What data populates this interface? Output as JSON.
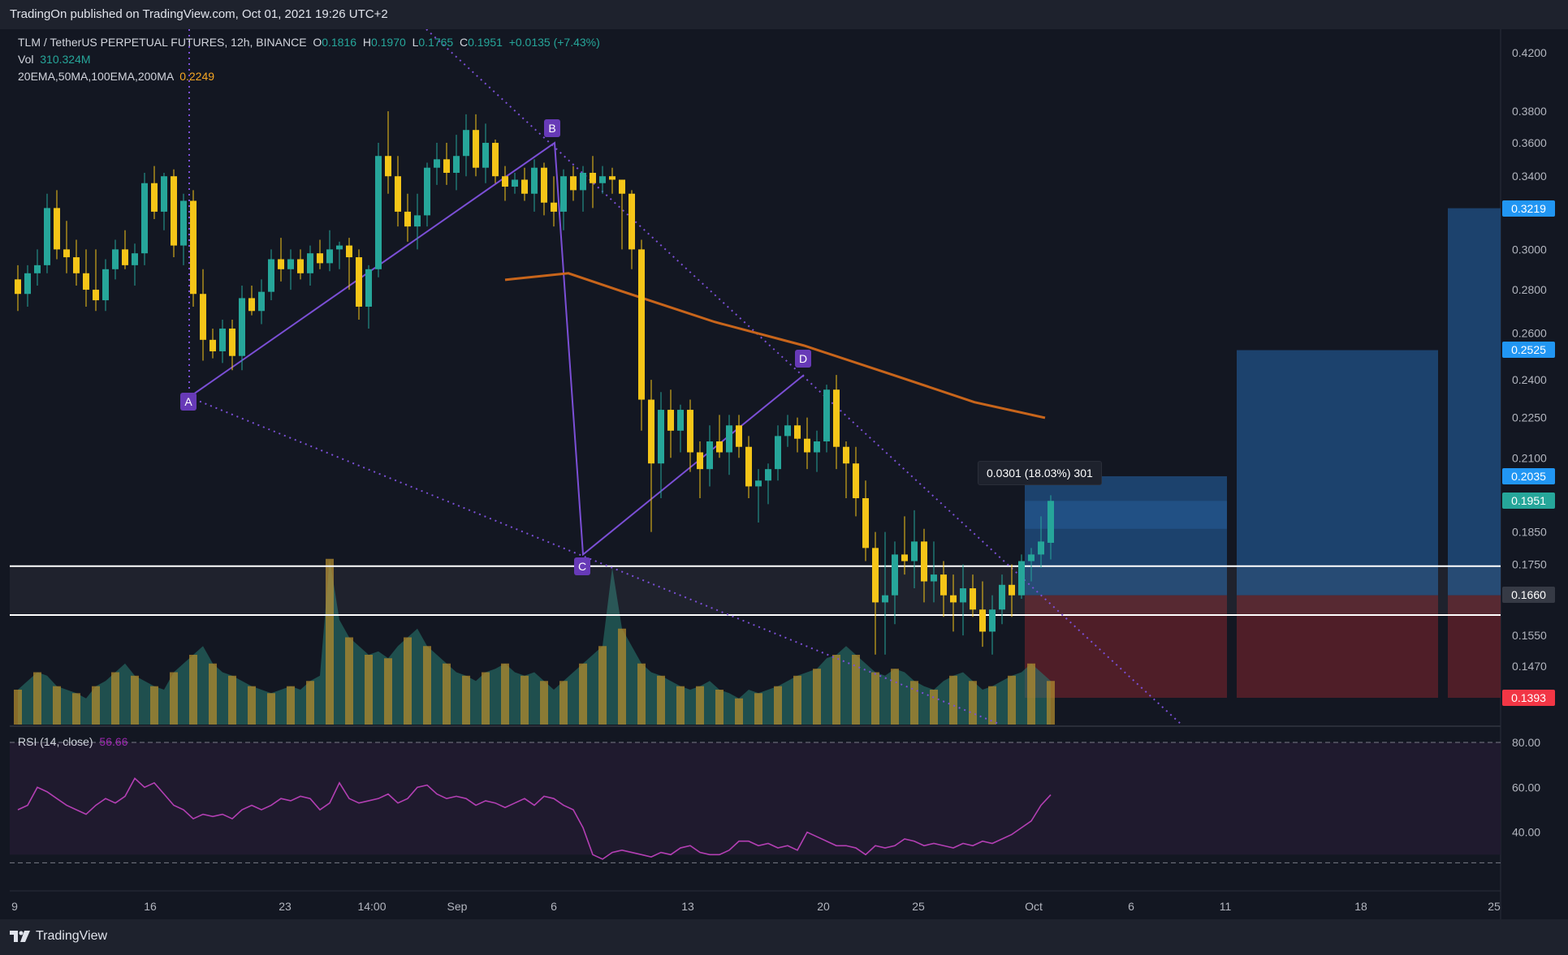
{
  "header": {
    "publish_line": "TradingOn published on TradingView.com, Oct 01, 2021 19:26 UTC+2"
  },
  "legend": {
    "symbol_line": "TLM / TetherUS PERPETUAL FUTURES, 12h, BINANCE",
    "o_label": "O",
    "o_value": "0.1816",
    "h_label": "H",
    "h_value": "0.1970",
    "l_label": "L",
    "l_value": "0.1765",
    "c_label": "C",
    "c_value": "0.1951",
    "change": "+0.0135 (+7.43%)",
    "vol_label": "Vol",
    "vol_value": "310.324M",
    "ma_label": "20EMA,50MA,100EMA,200MA",
    "ma_value": "0.2249",
    "rsi_label": "RSI (14, close)",
    "rsi_value": "56.66"
  },
  "price_labels": {
    "p1": "0.3219",
    "p2": "0.2525",
    "p3": "0.2035",
    "p4": "0.1951",
    "p5": "0.1660",
    "p6": "0.1393"
  },
  "measure": {
    "text": "0.0301 (18.03%) 301"
  },
  "pattern_points": {
    "a": "A",
    "b": "B",
    "c": "C",
    "d": "D"
  },
  "footer": {
    "brand": "TradingView"
  },
  "colors": {
    "background": "#131722",
    "up": "#26a69a",
    "down": "#f5c518",
    "ema200": "#c8651b",
    "pattern": "#7b4fd6",
    "target": "#1e4a7a",
    "stop": "#5a2029",
    "rsi": "#b33fb3"
  },
  "chart_data": {
    "type": "candlestick",
    "title": "TLM / TetherUS PERPETUAL FUTURES, 12h, BINANCE",
    "timeframe": "12h",
    "scale": "log",
    "ylim": [
      0.1393,
      0.42
    ],
    "y_ticks": [
      "0.4200",
      "0.3800",
      "0.3600",
      "0.3400",
      "0.3000",
      "0.2800",
      "0.2600",
      "0.2400",
      "0.2250",
      "0.2100",
      "0.1850",
      "0.1750",
      "0.1550",
      "0.1470"
    ],
    "x_ticks": [
      "9",
      "16",
      "23",
      "14:00",
      "Sep",
      "6",
      "13",
      "20",
      "25",
      "Oct",
      "6",
      "11",
      "18",
      "25"
    ],
    "candles": [
      [
        0.285,
        0.292,
        0.27,
        0.278
      ],
      [
        0.278,
        0.292,
        0.272,
        0.288
      ],
      [
        0.288,
        0.3,
        0.282,
        0.292
      ],
      [
        0.292,
        0.33,
        0.288,
        0.322
      ],
      [
        0.322,
        0.332,
        0.295,
        0.3
      ],
      [
        0.3,
        0.315,
        0.288,
        0.296
      ],
      [
        0.296,
        0.305,
        0.282,
        0.288
      ],
      [
        0.288,
        0.3,
        0.272,
        0.28
      ],
      [
        0.28,
        0.3,
        0.27,
        0.275
      ],
      [
        0.275,
        0.295,
        0.27,
        0.29
      ],
      [
        0.29,
        0.305,
        0.285,
        0.3
      ],
      [
        0.3,
        0.31,
        0.29,
        0.292
      ],
      [
        0.292,
        0.303,
        0.282,
        0.298
      ],
      [
        0.298,
        0.342,
        0.292,
        0.336
      ],
      [
        0.336,
        0.346,
        0.316,
        0.32
      ],
      [
        0.32,
        0.342,
        0.31,
        0.34
      ],
      [
        0.34,
        0.344,
        0.296,
        0.302
      ],
      [
        0.302,
        0.33,
        0.292,
        0.326
      ],
      [
        0.326,
        0.332,
        0.272,
        0.278
      ],
      [
        0.278,
        0.29,
        0.248,
        0.257
      ],
      [
        0.257,
        0.262,
        0.249,
        0.252
      ],
      [
        0.252,
        0.266,
        0.247,
        0.262
      ],
      [
        0.262,
        0.266,
        0.244,
        0.25
      ],
      [
        0.25,
        0.282,
        0.244,
        0.276
      ],
      [
        0.276,
        0.282,
        0.268,
        0.27
      ],
      [
        0.27,
        0.285,
        0.264,
        0.279
      ],
      [
        0.279,
        0.3,
        0.275,
        0.295
      ],
      [
        0.295,
        0.306,
        0.284,
        0.29
      ],
      [
        0.29,
        0.3,
        0.28,
        0.295
      ],
      [
        0.295,
        0.3,
        0.285,
        0.288
      ],
      [
        0.288,
        0.302,
        0.282,
        0.298
      ],
      [
        0.298,
        0.305,
        0.29,
        0.293
      ],
      [
        0.293,
        0.31,
        0.289,
        0.3
      ],
      [
        0.3,
        0.304,
        0.29,
        0.302
      ],
      [
        0.302,
        0.306,
        0.28,
        0.296
      ],
      [
        0.296,
        0.3,
        0.266,
        0.272
      ],
      [
        0.272,
        0.292,
        0.262,
        0.29
      ],
      [
        0.29,
        0.36,
        0.286,
        0.352
      ],
      [
        0.352,
        0.38,
        0.33,
        0.34
      ],
      [
        0.34,
        0.352,
        0.312,
        0.32
      ],
      [
        0.32,
        0.33,
        0.304,
        0.312
      ],
      [
        0.312,
        0.33,
        0.3,
        0.318
      ],
      [
        0.318,
        0.348,
        0.312,
        0.345
      ],
      [
        0.345,
        0.36,
        0.335,
        0.35
      ],
      [
        0.35,
        0.36,
        0.335,
        0.342
      ],
      [
        0.342,
        0.365,
        0.332,
        0.352
      ],
      [
        0.352,
        0.378,
        0.34,
        0.368
      ],
      [
        0.368,
        0.378,
        0.34,
        0.345
      ],
      [
        0.345,
        0.372,
        0.336,
        0.36
      ],
      [
        0.36,
        0.362,
        0.336,
        0.34
      ],
      [
        0.34,
        0.346,
        0.326,
        0.334
      ],
      [
        0.334,
        0.342,
        0.33,
        0.338
      ],
      [
        0.338,
        0.345,
        0.326,
        0.33
      ],
      [
        0.33,
        0.35,
        0.32,
        0.345
      ],
      [
        0.345,
        0.348,
        0.318,
        0.325
      ],
      [
        0.325,
        0.34,
        0.312,
        0.32
      ],
      [
        0.32,
        0.344,
        0.31,
        0.34
      ],
      [
        0.34,
        0.346,
        0.326,
        0.332
      ],
      [
        0.332,
        0.346,
        0.32,
        0.342
      ],
      [
        0.342,
        0.352,
        0.322,
        0.336
      ],
      [
        0.336,
        0.346,
        0.33,
        0.34
      ],
      [
        0.34,
        0.345,
        0.33,
        0.338
      ],
      [
        0.338,
        0.338,
        0.3,
        0.33
      ],
      [
        0.33,
        0.332,
        0.29,
        0.3
      ],
      [
        0.3,
        0.305,
        0.22,
        0.232
      ],
      [
        0.232,
        0.24,
        0.185,
        0.208
      ],
      [
        0.208,
        0.235,
        0.196,
        0.228
      ],
      [
        0.228,
        0.236,
        0.21,
        0.22
      ],
      [
        0.22,
        0.23,
        0.212,
        0.228
      ],
      [
        0.228,
        0.232,
        0.205,
        0.212
      ],
      [
        0.212,
        0.216,
        0.196,
        0.206
      ],
      [
        0.206,
        0.222,
        0.2,
        0.216
      ],
      [
        0.216,
        0.226,
        0.21,
        0.212
      ],
      [
        0.212,
        0.226,
        0.204,
        0.222
      ],
      [
        0.222,
        0.226,
        0.21,
        0.214
      ],
      [
        0.214,
        0.218,
        0.196,
        0.2
      ],
      [
        0.2,
        0.206,
        0.188,
        0.202
      ],
      [
        0.202,
        0.208,
        0.194,
        0.206
      ],
      [
        0.206,
        0.222,
        0.202,
        0.218
      ],
      [
        0.218,
        0.226,
        0.214,
        0.222
      ],
      [
        0.222,
        0.225,
        0.212,
        0.217
      ],
      [
        0.217,
        0.225,
        0.206,
        0.212
      ],
      [
        0.212,
        0.22,
        0.205,
        0.216
      ],
      [
        0.216,
        0.238,
        0.212,
        0.236
      ],
      [
        0.236,
        0.242,
        0.206,
        0.214
      ],
      [
        0.214,
        0.216,
        0.196,
        0.208
      ],
      [
        0.208,
        0.214,
        0.19,
        0.196
      ],
      [
        0.196,
        0.202,
        0.176,
        0.18
      ],
      [
        0.18,
        0.185,
        0.15,
        0.164
      ],
      [
        0.164,
        0.185,
        0.15,
        0.166
      ],
      [
        0.166,
        0.182,
        0.158,
        0.178
      ],
      [
        0.178,
        0.19,
        0.172,
        0.176
      ],
      [
        0.176,
        0.192,
        0.168,
        0.182
      ],
      [
        0.182,
        0.186,
        0.164,
        0.17
      ],
      [
        0.17,
        0.182,
        0.164,
        0.172
      ],
      [
        0.172,
        0.176,
        0.16,
        0.166
      ],
      [
        0.166,
        0.172,
        0.156,
        0.164
      ],
      [
        0.164,
        0.175,
        0.155,
        0.168
      ],
      [
        0.168,
        0.172,
        0.16,
        0.162
      ],
      [
        0.162,
        0.17,
        0.152,
        0.156
      ],
      [
        0.156,
        0.166,
        0.15,
        0.162
      ],
      [
        0.162,
        0.172,
        0.158,
        0.169
      ],
      [
        0.169,
        0.175,
        0.16,
        0.166
      ],
      [
        0.166,
        0.178,
        0.165,
        0.176
      ],
      [
        0.176,
        0.18,
        0.17,
        0.178
      ],
      [
        0.178,
        0.19,
        0.174,
        0.182
      ],
      [
        0.1816,
        0.197,
        0.1765,
        0.1951
      ]
    ],
    "volume": [
      0.2,
      0.25,
      0.3,
      0.28,
      0.22,
      0.2,
      0.18,
      0.15,
      0.22,
      0.25,
      0.3,
      0.35,
      0.28,
      0.25,
      0.22,
      0.2,
      0.3,
      0.35,
      0.4,
      0.45,
      0.35,
      0.3,
      0.28,
      0.25,
      0.22,
      0.2,
      0.18,
      0.2,
      0.22,
      0.2,
      0.25,
      0.28,
      0.95,
      0.6,
      0.5,
      0.45,
      0.4,
      0.42,
      0.38,
      0.45,
      0.5,
      0.55,
      0.45,
      0.4,
      0.35,
      0.3,
      0.28,
      0.25,
      0.3,
      0.32,
      0.35,
      0.3,
      0.28,
      0.3,
      0.25,
      0.2,
      0.25,
      0.3,
      0.35,
      0.4,
      0.45,
      0.9,
      0.55,
      0.45,
      0.35,
      0.3,
      0.28,
      0.25,
      0.22,
      0.2,
      0.22,
      0.25,
      0.2,
      0.18,
      0.15,
      0.2,
      0.18,
      0.2,
      0.22,
      0.25,
      0.28,
      0.3,
      0.32,
      0.38,
      0.4,
      0.45,
      0.4,
      0.35,
      0.3,
      0.28,
      0.32,
      0.3,
      0.25,
      0.22,
      0.2,
      0.25,
      0.28,
      0.3,
      0.25,
      0.2,
      0.22,
      0.25,
      0.28,
      0.3,
      0.35,
      0.3,
      0.25
    ],
    "ema200": [
      [
        0.29,
        0.285
      ],
      [
        0.295,
        0.282
      ],
      [
        0.3,
        0.275
      ],
      [
        0.305,
        0.262
      ],
      [
        0.31,
        0.25
      ],
      [
        0.315,
        0.24
      ],
      [
        0.32,
        0.232
      ],
      [
        0.325,
        0.2249
      ]
    ],
    "pattern": {
      "A": 0.233,
      "B": 0.36,
      "C": 0.178,
      "D": 0.242
    },
    "horizontal_levels": [
      0.1745,
      0.1605
    ],
    "long_position": {
      "entry": 0.166,
      "targets": [
        0.2035,
        0.2525,
        0.3219
      ],
      "stop": 0.1393
    },
    "rsi": {
      "label": "RSI (14, close)",
      "last": 56.66,
      "ticks": [
        "80.00",
        "60.00",
        "40.00"
      ],
      "values": [
        50,
        52,
        60,
        58,
        55,
        52,
        50,
        48,
        52,
        55,
        53,
        56,
        64,
        60,
        62,
        57,
        52,
        50,
        46,
        48,
        47,
        48,
        46,
        50,
        52,
        50,
        52,
        55,
        54,
        56,
        55,
        50,
        53,
        62,
        55,
        53,
        54,
        55,
        57,
        53,
        55,
        60,
        61,
        57,
        55,
        56,
        55,
        52,
        54,
        53,
        51,
        53,
        55,
        52,
        56,
        55,
        52,
        50,
        42,
        30,
        28,
        31,
        32,
        31,
        30,
        29,
        31,
        30,
        33,
        34,
        31,
        30,
        30,
        32,
        36,
        36,
        34,
        35,
        33,
        34,
        32,
        40,
        38,
        36,
        34,
        34,
        33,
        30,
        34,
        33,
        34,
        37,
        36,
        34,
        35,
        34,
        33,
        35,
        34,
        36,
        35,
        37,
        39,
        42,
        45,
        52,
        56.66
      ]
    }
  }
}
